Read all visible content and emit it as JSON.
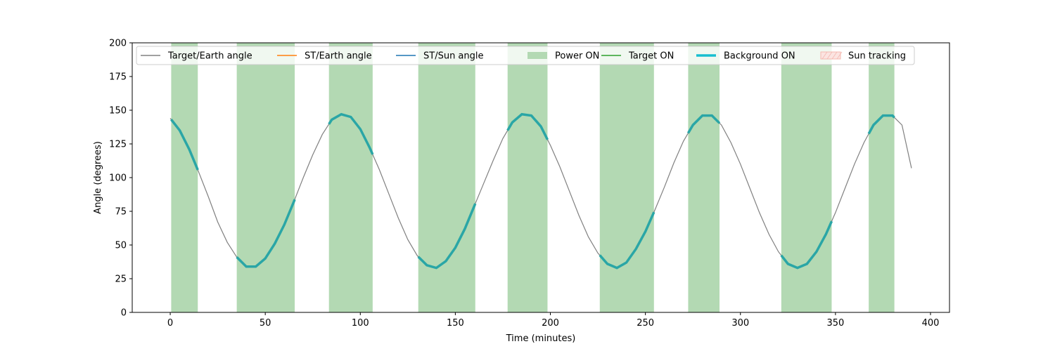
{
  "chart_data": {
    "type": "line",
    "title": "",
    "xlabel": "Time (minutes)",
    "ylabel": "Angle (degrees)",
    "xlim": [
      -20,
      410
    ],
    "ylim": [
      0,
      200
    ],
    "xticks": [
      0,
      50,
      100,
      150,
      200,
      250,
      300,
      350,
      400
    ],
    "yticks": [
      0,
      25,
      50,
      75,
      100,
      125,
      150,
      175,
      200
    ],
    "grid": false,
    "legend_position": "top",
    "legend": [
      {
        "label": "Target/Earth angle",
        "kind": "line",
        "color": "#808080"
      },
      {
        "label": "ST/Earth angle",
        "kind": "line",
        "color": "#ff7f0e"
      },
      {
        "label": "ST/Sun angle",
        "kind": "line",
        "color": "#1f77b4"
      },
      {
        "label": "Power ON",
        "kind": "patch",
        "color": "#b3d9b3"
      },
      {
        "label": "Target ON",
        "kind": "line",
        "color": "#2ca02c"
      },
      {
        "label": "Background ON",
        "kind": "thickline",
        "color": "#17becf"
      },
      {
        "label": "Sun tracking",
        "kind": "hatch",
        "color": "#f4b8b0"
      }
    ],
    "target_earth_angle": {
      "x": [
        0,
        5,
        10,
        15,
        20,
        25,
        30,
        35,
        40,
        45,
        50,
        55,
        60,
        65,
        70,
        75,
        80,
        85,
        90,
        95,
        100,
        105,
        110,
        115,
        120,
        125,
        130,
        135,
        140,
        145,
        150,
        155,
        160,
        165,
        170,
        175,
        180,
        185,
        190,
        195,
        200,
        205,
        210,
        215,
        220,
        225,
        230,
        235,
        240,
        245,
        250,
        255,
        260,
        265,
        270,
        275,
        280,
        285,
        290,
        295,
        300,
        305,
        310,
        315,
        320,
        325,
        330,
        335,
        340,
        345,
        350,
        355,
        360,
        365,
        370,
        375,
        380,
        385,
        390
      ],
      "y": [
        144,
        135,
        121,
        104,
        86,
        67,
        52,
        41,
        34,
        34,
        40,
        51,
        65,
        82,
        100,
        117,
        132,
        143,
        147,
        145,
        136,
        122,
        106,
        88,
        70,
        54,
        42,
        35,
        33,
        38,
        48,
        62,
        79,
        96,
        113,
        129,
        141,
        147,
        146,
        138,
        124,
        108,
        90,
        72,
        56,
        44,
        36,
        33,
        37,
        47,
        60,
        76,
        93,
        111,
        127,
        139,
        146,
        146,
        139,
        126,
        110,
        92,
        74,
        58,
        45,
        36,
        33,
        36,
        45,
        58,
        74,
        92,
        110,
        126,
        139,
        146,
        146,
        139,
        107
      ]
    },
    "power_on_intervals": [
      [
        0.5,
        14.5
      ],
      [
        35,
        65.5
      ],
      [
        83.5,
        106.5
      ],
      [
        130.5,
        160.5
      ],
      [
        177.5,
        198.5
      ],
      [
        226,
        254.5
      ],
      [
        272.5,
        289
      ],
      [
        321.5,
        348
      ],
      [
        367.5,
        381
      ]
    ],
    "background_on_intervals": [
      [
        0.5,
        14.5
      ],
      [
        35,
        65.5
      ],
      [
        83.5,
        106.5
      ],
      [
        130.5,
        160.5
      ],
      [
        177.5,
        198.5
      ],
      [
        226,
        254.5
      ],
      [
        272.5,
        289
      ],
      [
        321.5,
        348
      ],
      [
        367.5,
        381
      ]
    ]
  }
}
